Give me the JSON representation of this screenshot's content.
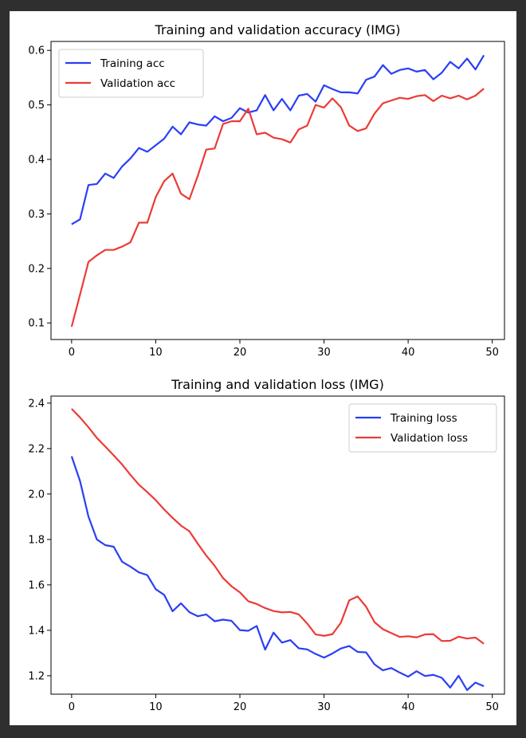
{
  "colors": {
    "training": "#2a3ff5",
    "validation": "#ec3b36"
  },
  "chart_data": [
    {
      "type": "line",
      "title": "Training and validation accuracy (IMG)",
      "xlabel": "",
      "ylabel": "",
      "xlim": [
        -2.45,
        51.45
      ],
      "ylim": [
        0.0696,
        0.6164
      ],
      "xticks": [
        0,
        10,
        20,
        30,
        40,
        50
      ],
      "yticks": [
        0.1,
        0.2,
        0.3,
        0.4,
        0.5,
        0.6
      ],
      "ytick_labels": [
        "0.1",
        "0.2",
        "0.3",
        "0.4",
        "0.5",
        "0.6"
      ],
      "grid": false,
      "legend_position": "upper-left",
      "series": [
        {
          "name": "Training acc",
          "color_key": "training",
          "values": [
            0.281,
            0.29,
            0.353,
            0.355,
            0.374,
            0.366,
            0.387,
            0.402,
            0.421,
            0.414,
            0.426,
            0.438,
            0.46,
            0.446,
            0.468,
            0.464,
            0.462,
            0.479,
            0.47,
            0.476,
            0.494,
            0.486,
            0.49,
            0.518,
            0.49,
            0.511,
            0.49,
            0.517,
            0.52,
            0.506,
            0.536,
            0.529,
            0.523,
            0.523,
            0.521,
            0.546,
            0.552,
            0.573,
            0.557,
            0.564,
            0.567,
            0.561,
            0.564,
            0.547,
            0.559,
            0.579,
            0.567,
            0.585,
            0.565,
            0.591
          ]
        },
        {
          "name": "Validation acc",
          "color_key": "validation",
          "values": [
            0.093,
            0.152,
            0.212,
            0.224,
            0.234,
            0.234,
            0.24,
            0.248,
            0.284,
            0.284,
            0.331,
            0.36,
            0.374,
            0.337,
            0.327,
            0.37,
            0.418,
            0.42,
            0.465,
            0.47,
            0.47,
            0.493,
            0.446,
            0.449,
            0.44,
            0.437,
            0.431,
            0.455,
            0.462,
            0.5,
            0.495,
            0.512,
            0.496,
            0.462,
            0.452,
            0.457,
            0.484,
            0.503,
            0.508,
            0.513,
            0.511,
            0.516,
            0.518,
            0.507,
            0.517,
            0.512,
            0.517,
            0.51,
            0.517,
            0.53
          ]
        }
      ]
    },
    {
      "type": "line",
      "title": "Training and validation loss (IMG)",
      "xlabel": "",
      "ylabel": "",
      "xlim": [
        -2.45,
        51.45
      ],
      "ylim": [
        1.119,
        2.431
      ],
      "xticks": [
        0,
        10,
        20,
        30,
        40,
        50
      ],
      "yticks": [
        1.2,
        1.4,
        1.6,
        1.8,
        2.0,
        2.2,
        2.4
      ],
      "ytick_labels": [
        "1.2",
        "1.4",
        "1.6",
        "1.8",
        "2.0",
        "2.2",
        "2.4"
      ],
      "grid": false,
      "legend_position": "upper-right",
      "series": [
        {
          "name": "Training loss",
          "color_key": "training",
          "values": [
            2.166,
            2.057,
            1.901,
            1.8,
            1.775,
            1.768,
            1.702,
            1.68,
            1.655,
            1.643,
            1.581,
            1.556,
            1.484,
            1.519,
            1.48,
            1.462,
            1.47,
            1.44,
            1.447,
            1.442,
            1.401,
            1.398,
            1.419,
            1.315,
            1.39,
            1.346,
            1.357,
            1.321,
            1.316,
            1.296,
            1.28,
            1.298,
            1.32,
            1.331,
            1.305,
            1.303,
            1.25,
            1.224,
            1.234,
            1.214,
            1.196,
            1.22,
            1.199,
            1.204,
            1.191,
            1.148,
            1.2,
            1.137,
            1.17,
            1.154
          ]
        },
        {
          "name": "Validation loss",
          "color_key": "validation",
          "values": [
            2.375,
            2.337,
            2.294,
            2.247,
            2.209,
            2.17,
            2.13,
            2.084,
            2.041,
            2.008,
            1.973,
            1.932,
            1.895,
            1.861,
            1.836,
            1.781,
            1.729,
            1.684,
            1.63,
            1.594,
            1.567,
            1.528,
            1.516,
            1.498,
            1.485,
            1.479,
            1.481,
            1.47,
            1.43,
            1.382,
            1.376,
            1.383,
            1.433,
            1.532,
            1.549,
            1.504,
            1.436,
            1.405,
            1.388,
            1.371,
            1.374,
            1.369,
            1.382,
            1.383,
            1.353,
            1.354,
            1.372,
            1.364,
            1.368,
            1.341
          ]
        }
      ]
    }
  ]
}
